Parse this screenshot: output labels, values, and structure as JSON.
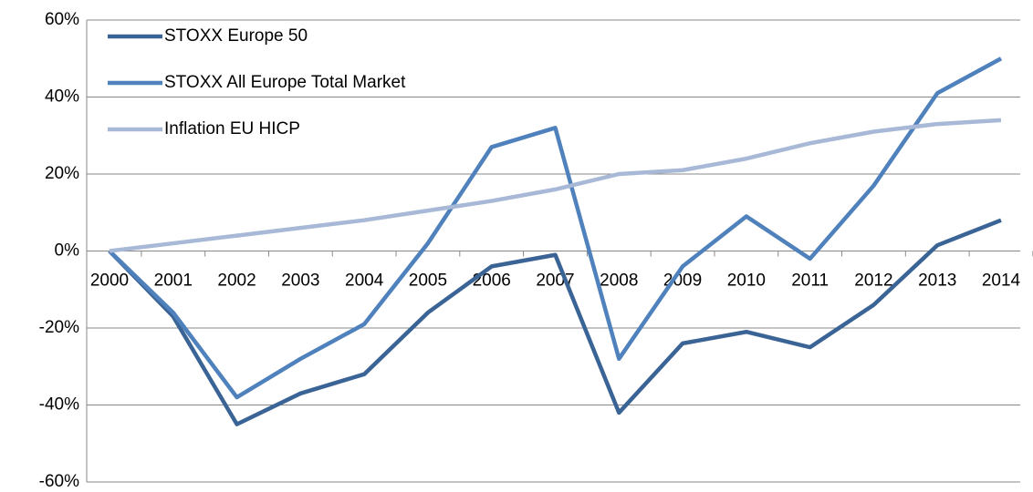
{
  "chart_data": {
    "type": "line",
    "categories": [
      "2000",
      "2001",
      "2002",
      "2003",
      "2004",
      "2005",
      "2006",
      "2007",
      "2008",
      "2009",
      "2010",
      "2011",
      "2012",
      "2013",
      "2014"
    ],
    "series": [
      {
        "name": "STOXX Europe 50",
        "color": "#3b6496",
        "values": [
          0,
          -17,
          -45,
          -37,
          -32,
          -16,
          -4,
          -1,
          -42,
          -24,
          -21,
          -25,
          -14,
          1.5,
          8
        ]
      },
      {
        "name": "STOXX All Europe Total Market",
        "color": "#4f81bd",
        "values": [
          0,
          -16,
          -38,
          -28,
          -19,
          2,
          27,
          32,
          -28,
          -4,
          9,
          -2,
          17,
          41,
          50
        ]
      },
      {
        "name": "Inflation EU HICP",
        "color": "#a7b9d6",
        "values": [
          0,
          2,
          4,
          6,
          8,
          10.5,
          13,
          16,
          20,
          21,
          24,
          28,
          31,
          33,
          34
        ]
      }
    ],
    "ylim": [
      -60,
      60
    ],
    "yticks": [
      {
        "value": -60,
        "label": "-60%"
      },
      {
        "value": -40,
        "label": "-40%"
      },
      {
        "value": -20,
        "label": "-20%"
      },
      {
        "value": 0,
        "label": "0%"
      },
      {
        "value": 20,
        "label": "20%"
      },
      {
        "value": 40,
        "label": "40%"
      },
      {
        "value": 60,
        "label": "60%"
      }
    ],
    "grid": true,
    "legend": "top-left"
  }
}
